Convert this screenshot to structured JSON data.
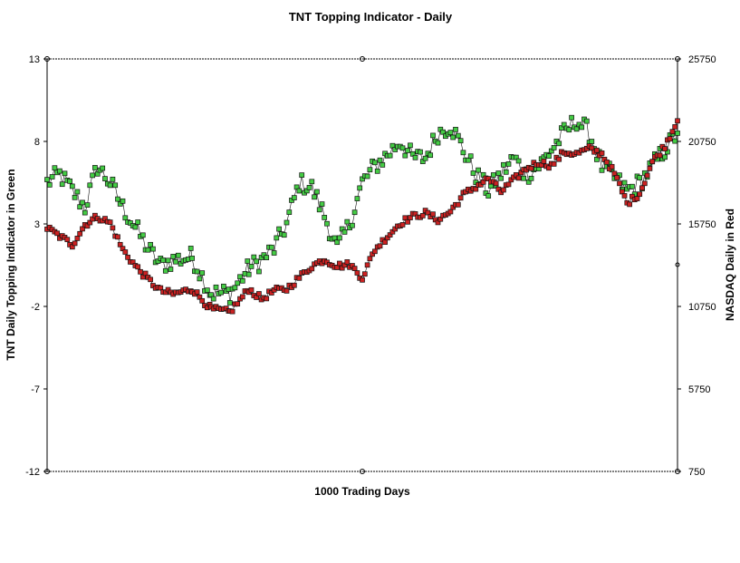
{
  "chart_data": {
    "type": "scatter",
    "title": "TNT Topping Indicator - Daily",
    "xlabel": "1000 Trading Days",
    "ylabel_left": "TNT Daily Topping Indicator in Green",
    "ylabel_right": "NASDAQ Daily in Red",
    "x": {
      "min": 0,
      "max": 1000
    },
    "y_left": {
      "min": -12,
      "max": 13,
      "ticks": [
        "13",
        "8",
        "3",
        "-2",
        "-7",
        "-12"
      ]
    },
    "y_right": {
      "min": 750,
      "max": 25750,
      "ticks": [
        "25750",
        "20750",
        "15750",
        "10750",
        "5750",
        "750"
      ]
    },
    "grid": false,
    "colors": {
      "tnt": "#44cc44",
      "nasdaq": "#cc2222",
      "marker_edge": "#111111"
    },
    "series": [
      {
        "name": "TNT Daily Topping Indicator in Green",
        "axis": "left",
        "color": "#44cc44",
        "points": [
          [
            0,
            5.5
          ],
          [
            20,
            6.0
          ],
          [
            40,
            5.0
          ],
          [
            60,
            4.0
          ],
          [
            80,
            6.5
          ],
          [
            100,
            5.5
          ],
          [
            120,
            4.0
          ],
          [
            140,
            2.8
          ],
          [
            160,
            1.5
          ],
          [
            180,
            0.5
          ],
          [
            200,
            0.8
          ],
          [
            230,
            1.0
          ],
          [
            260,
            -1.2
          ],
          [
            290,
            -1.2
          ],
          [
            320,
            0.3
          ],
          [
            340,
            0.8
          ],
          [
            360,
            1.5
          ],
          [
            380,
            3.0
          ],
          [
            400,
            5.5
          ],
          [
            420,
            5.2
          ],
          [
            440,
            3.5
          ],
          [
            460,
            1.5
          ],
          [
            480,
            3.0
          ],
          [
            500,
            5.5
          ],
          [
            520,
            6.5
          ],
          [
            540,
            7.2
          ],
          [
            560,
            8.0
          ],
          [
            580,
            7.0
          ],
          [
            600,
            7.0
          ],
          [
            620,
            8.5
          ],
          [
            640,
            9.0
          ],
          [
            660,
            7.5
          ],
          [
            680,
            6.0
          ],
          [
            700,
            5.0
          ],
          [
            720,
            6.0
          ],
          [
            740,
            7.0
          ],
          [
            760,
            6.0
          ],
          [
            780,
            6.5
          ],
          [
            800,
            7.5
          ],
          [
            820,
            8.5
          ],
          [
            840,
            9.3
          ],
          [
            860,
            8.5
          ],
          [
            880,
            6.5
          ],
          [
            900,
            5.8
          ],
          [
            920,
            5.0
          ],
          [
            940,
            5.5
          ],
          [
            960,
            6.5
          ],
          [
            980,
            7.5
          ],
          [
            1000,
            8.5
          ]
        ]
      },
      {
        "name": "NASDAQ Daily in Red",
        "axis": "right",
        "color": "#cc2222",
        "points": [
          [
            0,
            15500
          ],
          [
            20,
            15000
          ],
          [
            40,
            14500
          ],
          [
            60,
            15700
          ],
          [
            80,
            16200
          ],
          [
            100,
            15800
          ],
          [
            120,
            14200
          ],
          [
            140,
            13200
          ],
          [
            160,
            12400
          ],
          [
            180,
            11700
          ],
          [
            200,
            11500
          ],
          [
            230,
            11800
          ],
          [
            260,
            10600
          ],
          [
            290,
            10400
          ],
          [
            320,
            11800
          ],
          [
            340,
            11200
          ],
          [
            360,
            11700
          ],
          [
            380,
            11800
          ],
          [
            400,
            12500
          ],
          [
            420,
            13200
          ],
          [
            440,
            13600
          ],
          [
            460,
            13200
          ],
          [
            480,
            13300
          ],
          [
            500,
            12500
          ],
          [
            520,
            14200
          ],
          [
            540,
            15000
          ],
          [
            560,
            15800
          ],
          [
            580,
            16200
          ],
          [
            600,
            16400
          ],
          [
            620,
            16000
          ],
          [
            640,
            16500
          ],
          [
            660,
            17500
          ],
          [
            680,
            18000
          ],
          [
            700,
            18500
          ],
          [
            720,
            17700
          ],
          [
            740,
            18400
          ],
          [
            760,
            19100
          ],
          [
            780,
            19500
          ],
          [
            800,
            19300
          ],
          [
            820,
            20100
          ],
          [
            840,
            20000
          ],
          [
            860,
            20300
          ],
          [
            880,
            20000
          ],
          [
            900,
            18800
          ],
          [
            920,
            17000
          ],
          [
            940,
            17600
          ],
          [
            960,
            19500
          ],
          [
            980,
            20500
          ],
          [
            1000,
            22000
          ]
        ]
      }
    ]
  }
}
